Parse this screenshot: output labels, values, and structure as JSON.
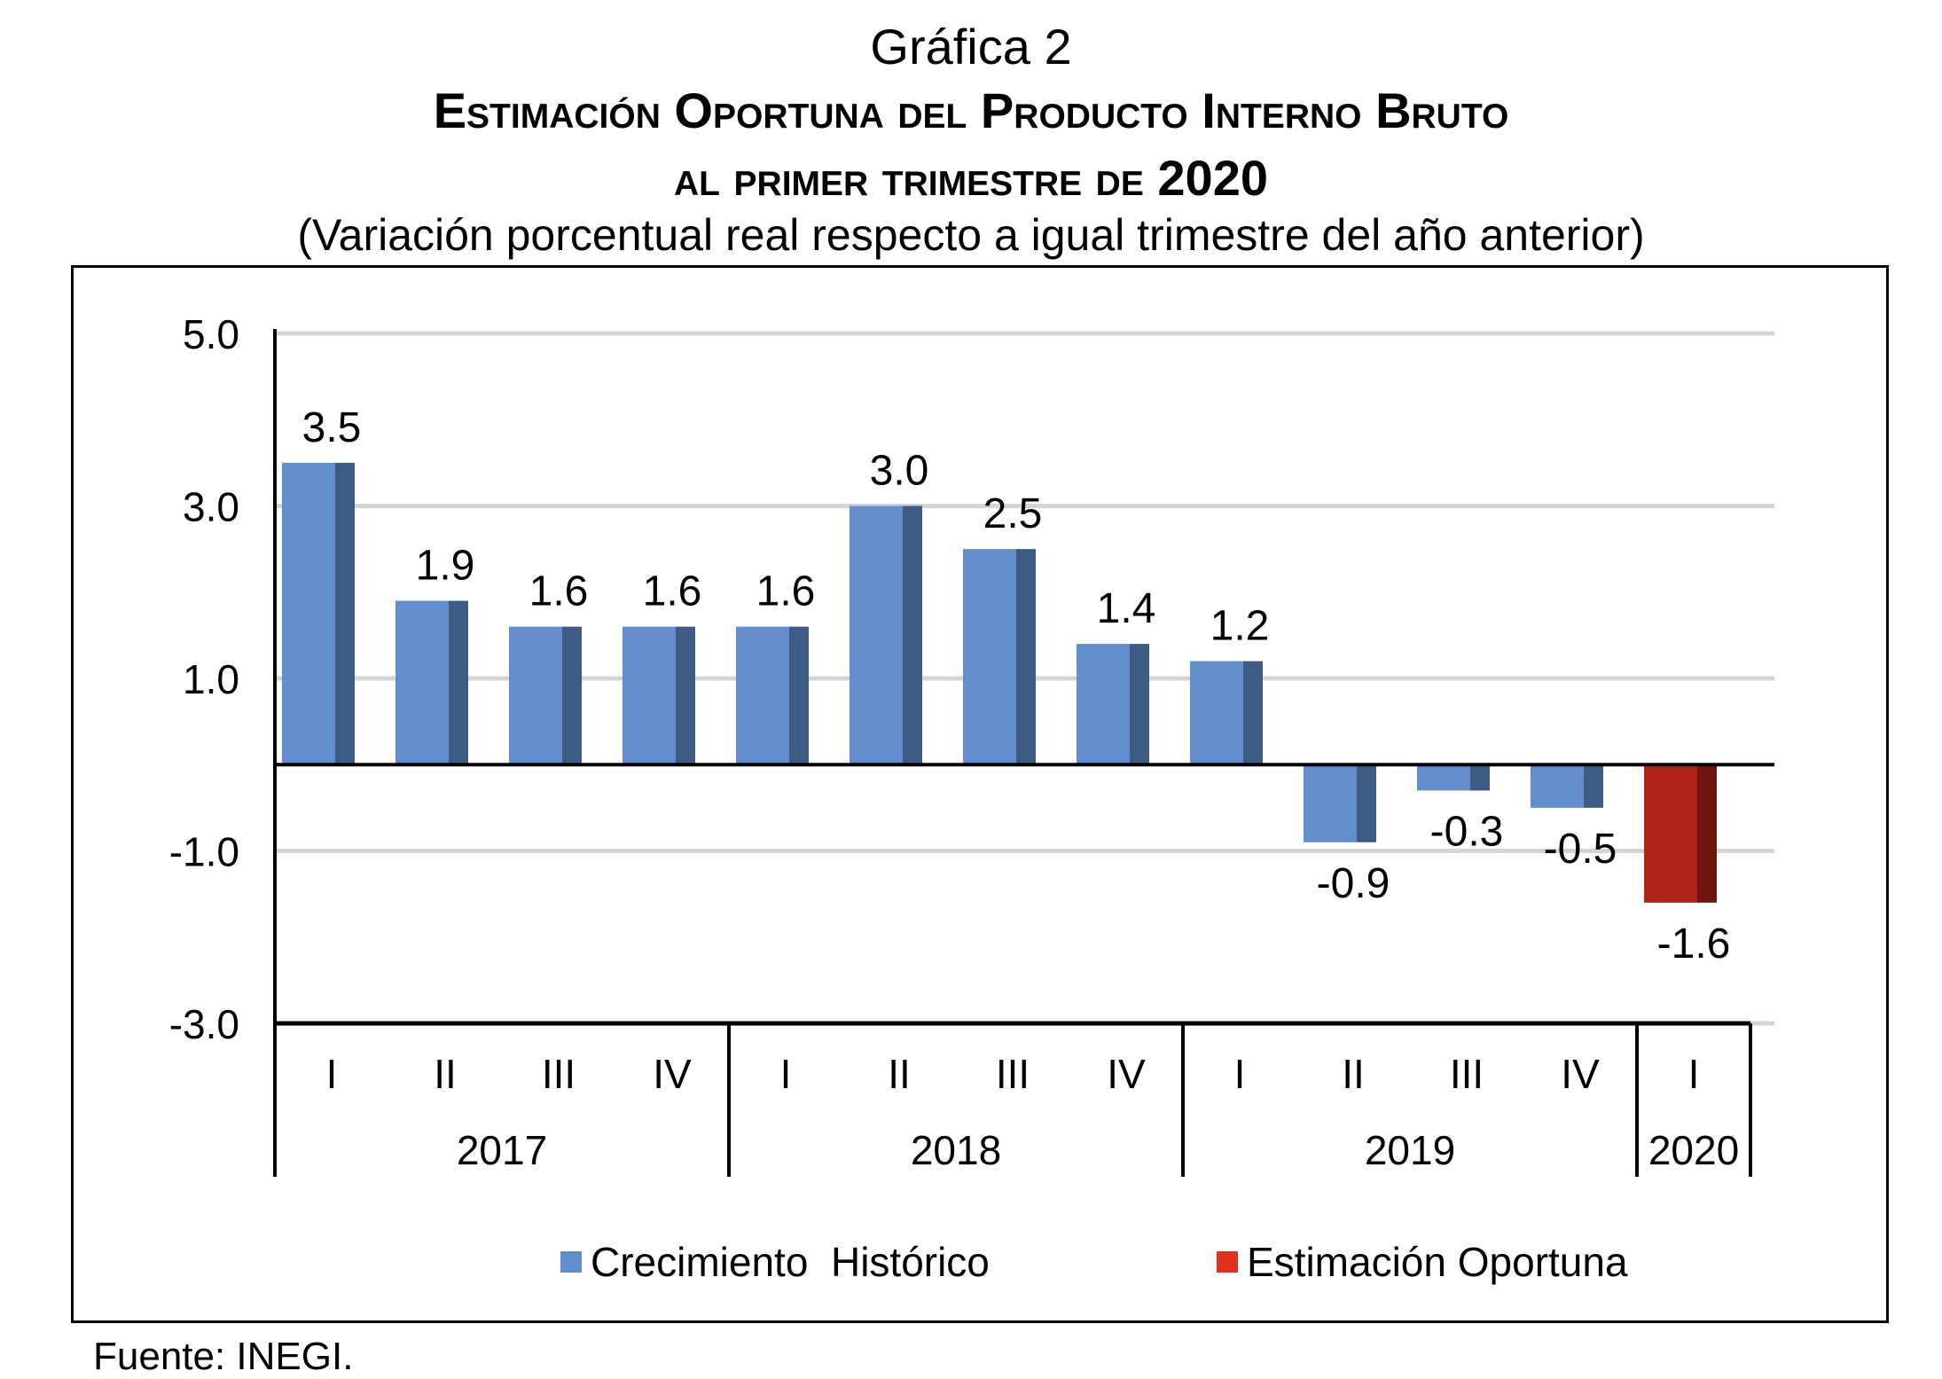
{
  "title": {
    "line1": "Gráfica 2",
    "line2": "Estimación Oportuna del Producto Interno Bruto",
    "line3": "al primer trimestre de 2020",
    "subtitle": "(Variación porcentual real respecto a igual trimestre del año anterior)"
  },
  "source": "Fuente: INEGI.",
  "chart_data": {
    "type": "bar",
    "ylim": [
      -3.0,
      5.0
    ],
    "yticks": [
      "5.0",
      "3.0",
      "1.0",
      "-1.0",
      "-3.0"
    ],
    "ytick_values": [
      5,
      3,
      1,
      -1,
      -3
    ],
    "grid": true,
    "legend_position": "bottom",
    "categories": [
      "I",
      "II",
      "III",
      "IV",
      "I",
      "II",
      "III",
      "IV",
      "I",
      "II",
      "III",
      "IV",
      "I"
    ],
    "years": [
      {
        "label": "2017",
        "quarters": 4
      },
      {
        "label": "2018",
        "quarters": 4
      },
      {
        "label": "2019",
        "quarters": 4
      },
      {
        "label": "2020",
        "quarters": 1
      }
    ],
    "values": [
      3.5,
      1.9,
      1.6,
      1.6,
      1.6,
      3.0,
      2.5,
      1.4,
      1.2,
      -0.9,
      -0.3,
      -0.5,
      -1.6
    ],
    "labels": [
      "3.5",
      "1.9",
      "1.6",
      "1.6",
      "1.6",
      "3.0",
      "2.5",
      "1.4",
      "1.2",
      "-0.9",
      "-0.3",
      "-0.5",
      "-1.6"
    ],
    "series_index": [
      0,
      0,
      0,
      0,
      0,
      0,
      0,
      0,
      0,
      0,
      0,
      0,
      1
    ],
    "series": [
      {
        "name": "Crecimiento  Histórico",
        "color": "#628ECE",
        "side_color": "#3E5B83"
      },
      {
        "name": "Estimación Oportuna",
        "color": "#B2231A",
        "side_color": "#70140F",
        "legend_color": "#E0301E"
      }
    ]
  }
}
